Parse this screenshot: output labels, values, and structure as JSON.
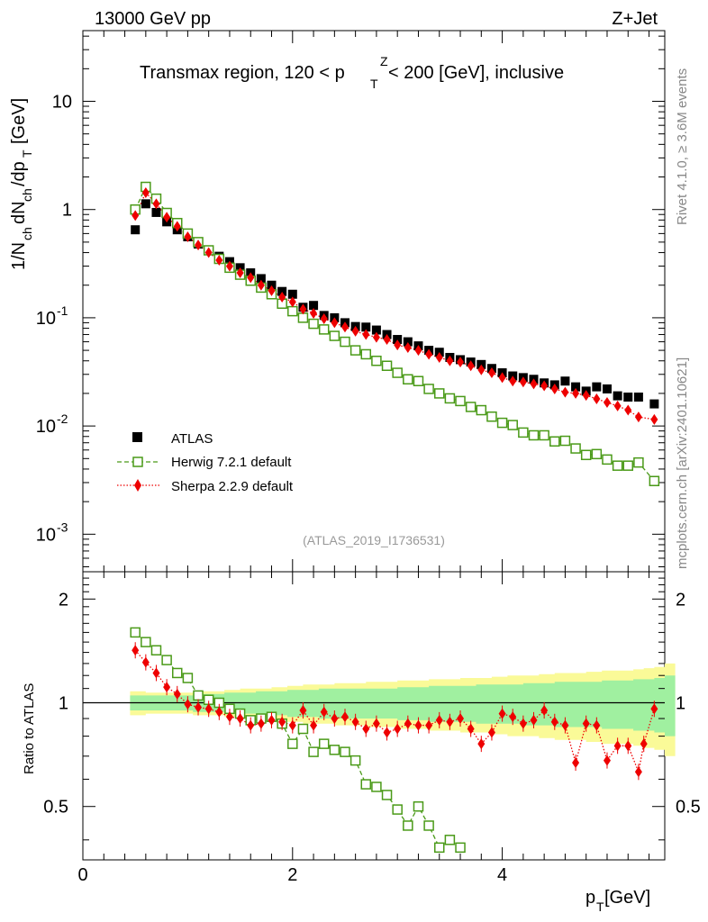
{
  "header": {
    "left": "13000 GeV pp",
    "right": "Z+Jet",
    "region_title": "Transmax region, 120 < p",
    "region_title_sub": "T",
    "region_title_sup": "Z",
    "region_title_tail": " < 200 [GeV], inclusive",
    "analysis_id": "(ATLAS_2019_I1736531)"
  },
  "side_labels": {
    "rivet": "Rivet 4.1.0, ≥ 3.6M events",
    "mcplots": "mcplots.cern.ch [arXiv:2401.10621]"
  },
  "axes": {
    "main_ylabel": "1/N",
    "main_ylabel_full": "1/N_ch dN_ch/dp_T [GeV]",
    "ratio_ylabel": "Ratio to ATLAS",
    "xlabel_main": "p",
    "xlabel_sub": "T",
    "xlabel_unit": " [GeV]",
    "x_ticks": [
      "0",
      "2",
      "4"
    ],
    "main_y_ticks": [
      {
        "base": "10",
        "exp": "-3",
        "value": 0.001
      },
      {
        "base": "10",
        "exp": "-2",
        "value": 0.01
      },
      {
        "base": "10",
        "exp": "-1",
        "value": 0.1
      },
      {
        "base": "1",
        "exp": "",
        "value": 1
      },
      {
        "base": "10",
        "exp": "",
        "value": 10
      }
    ],
    "ratio_y_ticks": [
      "0.5",
      "1",
      "2"
    ]
  },
  "legend": [
    {
      "key": "atlas",
      "label": "ATLAS"
    },
    {
      "key": "herwig",
      "label": "Herwig 7.2.1 default"
    },
    {
      "key": "sherpa",
      "label": "Sherpa 2.2.9 default"
    }
  ],
  "colors": {
    "atlas": "#000000",
    "herwig": "#4a9a18",
    "sherpa": "#ee0000",
    "band_inner": "#a0f0a0",
    "band_outer": "#fafa98"
  },
  "chart_data": {
    "type": "scatter",
    "title": "Transmax region, 120 < pT^Z < 200 [GeV], inclusive",
    "xlabel": "pT [GeV]",
    "ylabel": "1/N_ch dN_ch/dp_T [GeV]",
    "xlim": [
      0,
      5.55
    ],
    "ylim": [
      0.00045,
      45
    ],
    "ratio_ylim": [
      0.35,
      2.4
    ],
    "x": [
      0.5,
      0.6,
      0.7,
      0.8,
      0.9,
      1.0,
      1.1,
      1.2,
      1.3,
      1.4,
      1.5,
      1.6,
      1.7,
      1.8,
      1.9,
      2.0,
      2.1,
      2.2,
      2.3,
      2.4,
      2.5,
      2.6,
      2.7,
      2.8,
      2.9,
      3.0,
      3.1,
      3.2,
      3.3,
      3.4,
      3.5,
      3.6,
      3.7,
      3.8,
      3.9,
      4.0,
      4.1,
      4.2,
      4.3,
      4.4,
      4.5,
      4.6,
      4.7,
      4.8,
      4.9,
      5.0,
      5.1,
      5.2,
      5.3,
      5.45
    ],
    "series": [
      {
        "name": "ATLAS",
        "values": [
          0.65,
          1.13,
          0.94,
          0.77,
          0.65,
          0.56,
          0.48,
          0.42,
          0.37,
          0.33,
          0.29,
          0.26,
          0.23,
          0.2,
          0.175,
          0.165,
          0.125,
          0.13,
          0.105,
          0.1,
          0.09,
          0.083,
          0.082,
          0.077,
          0.07,
          0.063,
          0.06,
          0.055,
          0.05,
          0.048,
          0.043,
          0.041,
          0.039,
          0.037,
          0.034,
          0.031,
          0.029,
          0.028,
          0.027,
          0.025,
          0.024,
          0.026,
          0.023,
          0.021,
          0.023,
          0.022,
          0.019,
          0.0185,
          0.0185,
          0.016
        ]
      },
      {
        "name": "Herwig 7.2.1 default",
        "values": [
          1.0,
          1.62,
          1.26,
          0.93,
          0.75,
          0.6,
          0.5,
          0.42,
          0.35,
          0.29,
          0.25,
          0.22,
          0.19,
          0.165,
          0.135,
          0.115,
          0.1,
          0.088,
          0.078,
          0.068,
          0.06,
          0.05,
          0.046,
          0.04,
          0.036,
          0.031,
          0.027,
          0.026,
          0.022,
          0.02,
          0.018,
          0.017,
          0.015,
          0.014,
          0.0122,
          0.0107,
          0.0102,
          0.0087,
          0.0082,
          0.0082,
          0.0072,
          0.0073,
          0.0062,
          0.0054,
          0.0055,
          0.0049,
          0.0043,
          0.0043,
          0.0046,
          0.0031
        ]
      },
      {
        "name": "Sherpa 2.2.9 default",
        "values": [
          0.88,
          1.43,
          1.13,
          0.85,
          0.7,
          0.56,
          0.47,
          0.4,
          0.34,
          0.3,
          0.26,
          0.235,
          0.2,
          0.178,
          0.155,
          0.14,
          0.12,
          0.11,
          0.098,
          0.09,
          0.082,
          0.075,
          0.07,
          0.066,
          0.063,
          0.056,
          0.053,
          0.05,
          0.046,
          0.043,
          0.04,
          0.039,
          0.036,
          0.033,
          0.031,
          0.028,
          0.026,
          0.0255,
          0.0245,
          0.0235,
          0.022,
          0.0205,
          0.02,
          0.0192,
          0.0178,
          0.0165,
          0.0153,
          0.014,
          0.0121,
          0.0115
        ]
      }
    ],
    "ratio_series": [
      {
        "name": "Herwig 7.2.1 default",
        "x": [
          0.5,
          0.6,
          0.7,
          0.8,
          0.9,
          1.0,
          1.1,
          1.2,
          1.3,
          1.4,
          1.5,
          1.6,
          1.7,
          1.8,
          1.9,
          2.0,
          2.1,
          2.2,
          2.3,
          2.4,
          2.5,
          2.6,
          2.7,
          2.8,
          2.9,
          3.0,
          3.1,
          3.2,
          3.3,
          3.4,
          3.5,
          3.6
        ],
        "values": [
          1.6,
          1.5,
          1.42,
          1.33,
          1.22,
          1.18,
          1.05,
          1.02,
          1.0,
          0.96,
          0.93,
          0.89,
          0.9,
          0.91,
          0.87,
          0.76,
          0.84,
          0.72,
          0.76,
          0.73,
          0.72,
          0.68,
          0.58,
          0.57,
          0.54,
          0.49,
          0.44,
          0.5,
          0.44,
          0.38,
          0.4,
          0.38
        ]
      },
      {
        "name": "Sherpa 2.2.9 default",
        "x": [
          0.5,
          0.6,
          0.7,
          0.8,
          0.9,
          1.0,
          1.1,
          1.2,
          1.3,
          1.4,
          1.5,
          1.6,
          1.7,
          1.8,
          1.9,
          2.0,
          2.1,
          2.2,
          2.3,
          2.4,
          2.5,
          2.6,
          2.7,
          2.8,
          2.9,
          3.0,
          3.1,
          3.2,
          3.3,
          3.4,
          3.5,
          3.6,
          3.7,
          3.8,
          3.9,
          4.0,
          4.1,
          4.2,
          4.3,
          4.4,
          4.5,
          4.6,
          4.7,
          4.8,
          4.9,
          5.0,
          5.1,
          5.2,
          5.3,
          5.35,
          5.45
        ],
        "values": [
          1.42,
          1.31,
          1.22,
          1.11,
          1.06,
          0.99,
          0.97,
          0.96,
          0.94,
          0.91,
          0.9,
          0.86,
          0.87,
          0.89,
          0.88,
          0.86,
          0.95,
          0.86,
          0.94,
          0.9,
          0.91,
          0.88,
          0.84,
          0.87,
          0.82,
          0.84,
          0.87,
          0.86,
          0.86,
          0.89,
          0.88,
          0.9,
          0.84,
          0.76,
          0.82,
          0.93,
          0.91,
          0.87,
          0.89,
          0.95,
          0.88,
          0.86,
          0.67,
          0.87,
          0.86,
          0.68,
          0.75,
          0.75,
          0.63,
          0.76,
          0.96
        ]
      }
    ],
    "band_inner": [
      0.05,
      0.05,
      0.05,
      0.05,
      0.06,
      0.06,
      0.07,
      0.07,
      0.08,
      0.08,
      0.09,
      0.09,
      0.1,
      0.1,
      0.1,
      0.1,
      0.1,
      0.11,
      0.11,
      0.12,
      0.12,
      0.12,
      0.13,
      0.13,
      0.13,
      0.14,
      0.14,
      0.15,
      0.15,
      0.15,
      0.16,
      0.16,
      0.17,
      0.17,
      0.18,
      0.2
    ],
    "band_outer": [
      0.08,
      0.07,
      0.07,
      0.07,
      0.08,
      0.08,
      0.09,
      0.1,
      0.1,
      0.11,
      0.12,
      0.13,
      0.13,
      0.14,
      0.14,
      0.15,
      0.15,
      0.16,
      0.16,
      0.17,
      0.17,
      0.18,
      0.18,
      0.19,
      0.2,
      0.2,
      0.21,
      0.22,
      0.22,
      0.23,
      0.24,
      0.24,
      0.25,
      0.26,
      0.27,
      0.3
    ],
    "band_x": [
      0.45,
      0.6,
      0.75,
      0.9,
      1.05,
      1.2,
      1.35,
      1.5,
      1.65,
      1.8,
      1.95,
      2.1,
      2.25,
      2.4,
      2.55,
      2.7,
      2.85,
      3.0,
      3.15,
      3.3,
      3.45,
      3.6,
      3.75,
      3.9,
      4.05,
      4.2,
      4.35,
      4.5,
      4.65,
      4.8,
      4.95,
      5.1,
      5.25,
      5.35,
      5.45,
      5.55
    ]
  }
}
